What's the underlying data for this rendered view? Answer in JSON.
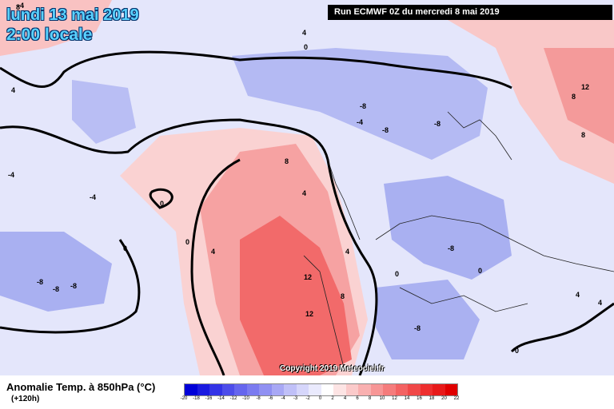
{
  "header": {
    "date": "lundi 13 mai 2019",
    "local_time": "2:00 locale",
    "run": "Run ECMWF 0Z du mercredi 8 mai 2019"
  },
  "map": {
    "copyright": "Copyright 2019 Meteociel.fr",
    "contour_labels": [
      "8",
      "4",
      "0",
      "4",
      "8",
      "12",
      "8",
      "-8",
      "-4",
      "-8",
      "-4",
      "-8",
      "0",
      "-4",
      "4",
      "8",
      "4",
      "0",
      "4",
      "0",
      "12",
      "8",
      "12",
      "-8",
      "-8",
      "-8",
      "-4",
      "-8",
      "0",
      "0",
      "4",
      "4",
      "0",
      "-8"
    ],
    "colors": {
      "warm_strong": "#f25252",
      "warm_mid": "#f79090",
      "warm_light": "#fcd0cf",
      "cold_light": "#d9dcfb",
      "cold_mid": "#aeb4f3",
      "cold_strong": "#8a92ea",
      "land_border": "#000000"
    }
  },
  "legend": {
    "title": "Anomalie Temp. à 850hPa (°C)",
    "subtitle": "(+120h)",
    "scale_values": [
      "-20",
      "-18",
      "-16",
      "-14",
      "-12",
      "-10",
      "-8",
      "-6",
      "-4",
      "-3",
      "-2",
      "0",
      "2",
      "4",
      "6",
      "8",
      "10",
      "12",
      "14",
      "16",
      "18",
      "20",
      "22"
    ],
    "scale_colors": [
      "#0000d8",
      "#1a1ae0",
      "#3333e6",
      "#4d4dea",
      "#6666ee",
      "#7b7bf0",
      "#9090f2",
      "#a8a8f5",
      "#c0c0f8",
      "#d6d6fb",
      "#eaeafd",
      "#ffffff",
      "#fde4e4",
      "#fbcaca",
      "#f9b0b0",
      "#f79696",
      "#f57c7c",
      "#f36262",
      "#f04848",
      "#ee2e2e",
      "#e81a1a",
      "#e00000"
    ]
  }
}
